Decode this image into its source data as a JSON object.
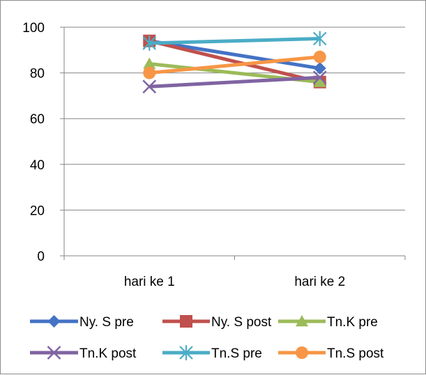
{
  "chart_data": {
    "type": "line",
    "title": "",
    "xlabel": "",
    "ylabel": "",
    "categories": [
      "hari ke 1",
      "hari ke 2"
    ],
    "ylim": [
      0,
      100
    ],
    "yticks": [
      0,
      20,
      40,
      60,
      80,
      100
    ],
    "grid": true,
    "legend_position": "bottom",
    "series": [
      {
        "name": "Ny. S pre",
        "values": [
          94,
          82
        ],
        "color": "#4472c4",
        "marker": "diamond"
      },
      {
        "name": "Ny. S post",
        "values": [
          94,
          76
        ],
        "color": "#c0504d",
        "marker": "square"
      },
      {
        "name": "Tn.K pre",
        "values": [
          84,
          76
        ],
        "color": "#9bbb59",
        "marker": "triangle"
      },
      {
        "name": "Tn.K post",
        "values": [
          74,
          78
        ],
        "color": "#8064a2",
        "marker": "x"
      },
      {
        "name": "Tn.S pre",
        "values": [
          93,
          95
        ],
        "color": "#4bacc6",
        "marker": "star"
      },
      {
        "name": "Tn.S post",
        "values": [
          80,
          87
        ],
        "color": "#f79646",
        "marker": "circle"
      }
    ]
  }
}
